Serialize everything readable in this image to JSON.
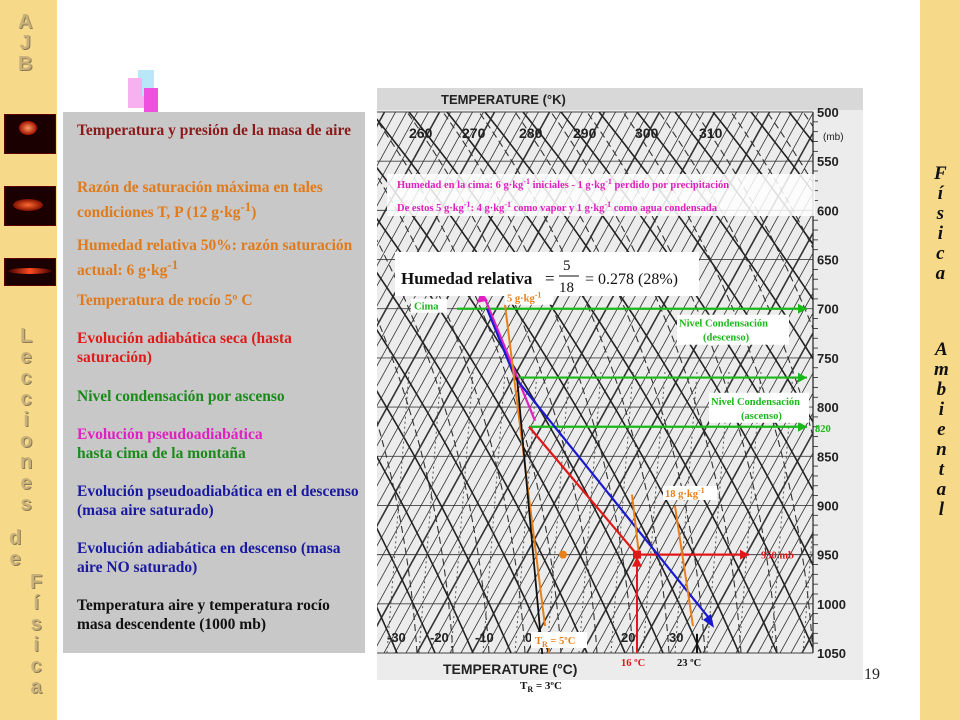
{
  "sidebar": {
    "title_letters": [
      "A",
      "J",
      "B"
    ],
    "lecciones_letters": [
      "L",
      "e",
      "c",
      "c",
      "i",
      "o",
      "n",
      "e",
      "s"
    ],
    "de_letters": [
      "d",
      "e"
    ],
    "fisica_letters": [
      "F",
      "í",
      "s",
      "i",
      "c",
      "a"
    ]
  },
  "right_bar": {
    "fisica_letters": [
      "F",
      "í",
      "s",
      "i",
      "c",
      "a"
    ],
    "ambiental_letters": [
      "A",
      "m",
      "b",
      "i",
      "e",
      "n",
      "t",
      "a",
      "l"
    ]
  },
  "panel_items": [
    {
      "html": "Temperatura y presión de la masa de aire",
      "color": "#8b1a1a"
    },
    {
      "html": "Razón de saturación máxima en tales condiciones T, P (12 g·kg<sup>-1</sup>)",
      "color": "#e07a1a"
    },
    {
      "html": "Humedad relativa 50%: razón saturación actual: 6 g·kg<sup>-1</sup>",
      "color": "#e07a1a"
    },
    {
      "html": "Temperatura de rocío 5º C",
      "color": "#e07a1a"
    },
    {
      "html": "Evolución adiabática seca (hasta saturación)",
      "color": "#e01a1a"
    },
    {
      "html": "Nivel condensación por ascenso",
      "color": "#1a8a1a"
    },
    {
      "html": "Evolución pseudoadiabática hasta cima de la montaña",
      "color": "#e020c0",
      "line2color": "#1a8a1a"
    },
    {
      "html": "Evolución pseudoadiabática en el descenso (masa aire saturado)",
      "color": "#1a1aa0"
    },
    {
      "html": "Evolución adiabática en descenso (masa aire NO saturado)",
      "color": "#1a1aa0"
    },
    {
      "html": "Temperatura aire y temperatura rocío masa descendente (1000 mb)",
      "color": "#111111"
    }
  ],
  "chart": {
    "header": "TEMPERATURE (°K)",
    "footer": "TEMPERATURE (°C)",
    "top_ticks": [
      "260",
      "270",
      "280",
      "290",
      "300",
      "310"
    ],
    "bottom_ticks": [
      "-30",
      "-20",
      "-10",
      "0",
      "10",
      "20",
      "30"
    ],
    "pressure_unit": "(mb)",
    "pressure_ticks": [
      "500",
      "550",
      "600",
      "650",
      "700",
      "750",
      "800",
      "850",
      "900",
      "950",
      "1000",
      "1050"
    ],
    "note1": "Humedad en la cima: 6 g·kg-1 iniciales - 1 g·kg-1 perdido por precipitación",
    "note2": "De estos 5 g·kg-1: 4 g·kg-1 como vapor y 1 g·kg-1 como agua condensada",
    "humidity_label": "Humedad relativa",
    "humidity_formula": "= 5/18 = 0.278 (28%)",
    "cima": "Cima",
    "mix5": "5 g·kg-1",
    "nivel_desc_1": "Nivel Condensación",
    "nivel_desc_2": "(descenso)",
    "nivel_asc_1": "Nivel Condensación",
    "nivel_asc_2": "(ascenso)",
    "p820": "820",
    "mix18": "18 g·kg-1",
    "p950": "950 mb",
    "tr5": "TR = 5ºC",
    "t16": "16 ºC",
    "t23": "23 ºC",
    "tr3": "TR = 3ºC",
    "colors": {
      "green": "#1ab81a",
      "red": "#e01818",
      "blue": "#1a1ad0",
      "orange": "#e8801a",
      "magenta": "#e020c0",
      "dark": "#111111"
    }
  },
  "page_number": "19"
}
